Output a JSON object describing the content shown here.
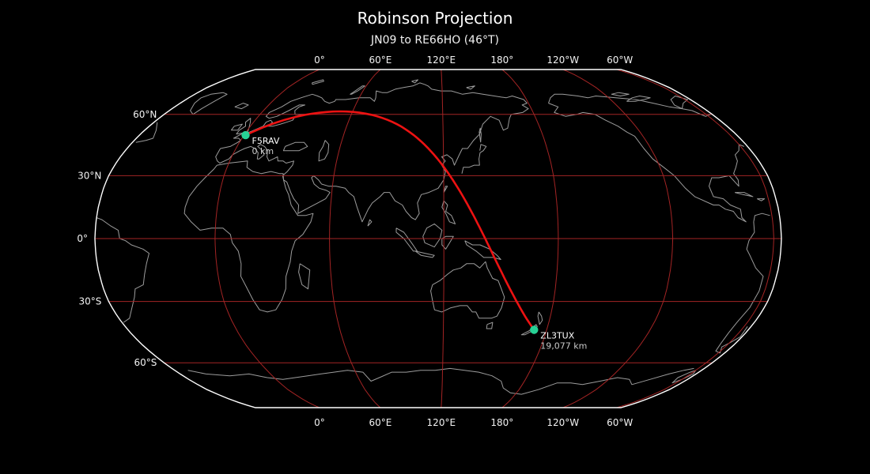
{
  "title": "Robinson Projection",
  "subtitle": "JN09 to RE66HO (46°T)",
  "axes": {
    "longitude_labels": [
      "0°",
      "60°E",
      "120°E",
      "180°",
      "120°W",
      "60°W"
    ],
    "latitude_labels": [
      "60°N",
      "30°N",
      "0°",
      "30°S",
      "60°S"
    ]
  },
  "route": {
    "origin": {
      "callsign": "F5RAV",
      "distance": "0 km"
    },
    "destination": {
      "callsign": "ZL3TUX",
      "distance": "19,077 km"
    }
  },
  "chart_data": {
    "type": "map",
    "projection": "Robinson",
    "title": "Robinson Projection",
    "subtitle": "JN09 to RE66HO (46°T)",
    "great_circle": {
      "from_grid": "JN09",
      "to_grid": "RE66HO",
      "bearing_deg_true": 46,
      "distance_km": 19077
    },
    "points": [
      {
        "callsign": "F5RAV",
        "grid": "JN09",
        "lon": 1.0,
        "lat": 49.5,
        "distance_km": 0
      },
      {
        "callsign": "ZL3TUX",
        "grid": "RE66HO",
        "lon": 172.7,
        "lat": -43.6,
        "distance_km": 19077
      }
    ],
    "graticule": {
      "meridians_deg": [
        0,
        60,
        120,
        180,
        -120,
        -60
      ],
      "parallels_deg": [
        60,
        30,
        0,
        -30,
        -60
      ]
    }
  },
  "colors": {
    "background": "#000000",
    "boundary": "#ffffff",
    "coastline": "#9c9c9c",
    "graticule": "#a32424",
    "route_path": "#ec1212",
    "marker": "#27d195",
    "tick_label": "#f2f2f2",
    "callsign_label": "#ffffff",
    "distance_label": "#c9c9c9"
  }
}
